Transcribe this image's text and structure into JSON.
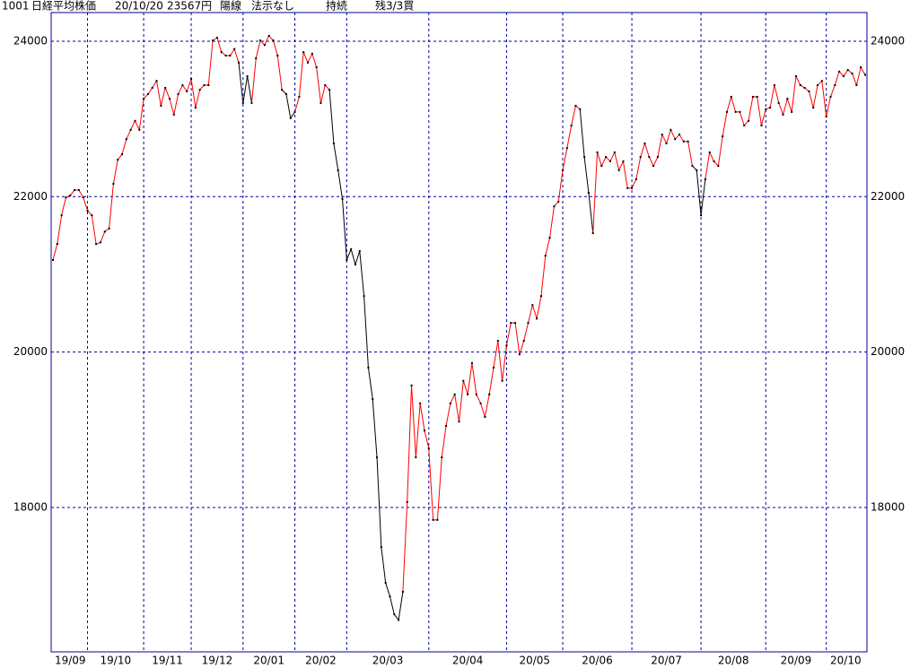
{
  "chart_data": {
    "type": "line",
    "header": [
      "1001",
      "日経平均株価",
      "20/10/20",
      "23567円",
      "陽線",
      "法示なし",
      "持続",
      "残3/3買"
    ],
    "values": [
      21184,
      21392,
      21760,
      21990,
      22015,
      22085,
      22085,
      21990,
      21820,
      21760,
      21390,
      21410,
      21550,
      21590,
      22165,
      22475,
      22545,
      22740,
      22860,
      22975,
      22860,
      23260,
      23320,
      23400,
      23490,
      23170,
      23400,
      23260,
      23055,
      23320,
      23435,
      23355,
      23515,
      23145,
      23375,
      23435,
      23435,
      24010,
      24045,
      23860,
      23815,
      23815,
      23900,
      23725,
      23205,
      23550,
      23205,
      23780,
      24010,
      23950,
      24070,
      24010,
      23815,
      23375,
      23320,
      23010,
      23090,
      23285,
      23860,
      23725,
      23840,
      23665,
      23205,
      23435,
      23375,
      22685,
      22340,
      21970,
      21185,
      21325,
      21125,
      21300,
      20720,
      19800,
      19395,
      18645,
      17490,
      17030,
      16855,
      16625,
      16552,
      16915,
      18070,
      19570,
      18645,
      19340,
      18990,
      18760,
      17840,
      17840,
      18645,
      19050,
      19340,
      19455,
      19105,
      19630,
      19455,
      19860,
      19455,
      19340,
      19165,
      19455,
      19800,
      20145,
      19630,
      20085,
      20375,
      20375,
      19970,
      20145,
      20375,
      20605,
      20430,
      20720,
      21240,
      21470,
      21875,
      21935,
      22340,
      22625,
      22915,
      23170,
      23125,
      22510,
      22050,
      21530,
      22570,
      22395,
      22510,
      22455,
      22570,
      22340,
      22455,
      22110,
      22110,
      22225,
      22510,
      22685,
      22510,
      22395,
      22510,
      22800,
      22685,
      22860,
      22740,
      22800,
      22710,
      22710,
      22395,
      22340,
      21760,
      22225,
      22570,
      22455,
      22395,
      22775,
      23090,
      23285,
      23090,
      23090,
      22915,
      22975,
      23285,
      23285,
      22915,
      23125,
      23145,
      23435,
      23205,
      23055,
      23260,
      23090,
      23550,
      23435,
      23400,
      23355,
      23145,
      23435,
      23490,
      23030,
      23285,
      23435,
      23610,
      23550,
      23630,
      23585,
      23435,
      23665,
      23567
    ],
    "color": "#ff0000",
    "alt_color": "#000000",
    "alt_ranges": [
      [
        43,
        46
      ],
      [
        53,
        56
      ],
      [
        64,
        81
      ],
      [
        122,
        125
      ],
      [
        148,
        151
      ]
    ],
    "xgrid": [
      8,
      21,
      32,
      44,
      56,
      68,
      87,
      105,
      118,
      134,
      150,
      165,
      179
    ],
    "xlabels": [
      "19/09",
      "19/10",
      "19/11",
      "19/12",
      "20/01",
      "20/02",
      "20/03",
      "20/04",
      "20/05",
      "20/06",
      "20/07",
      "20/08",
      "20/09",
      "20/10"
    ],
    "ylim": [
      16142,
      24369
    ],
    "yticks": [
      18000,
      20000,
      22000,
      24000
    ],
    "grid": true,
    "grid_color": "#0000a0"
  }
}
